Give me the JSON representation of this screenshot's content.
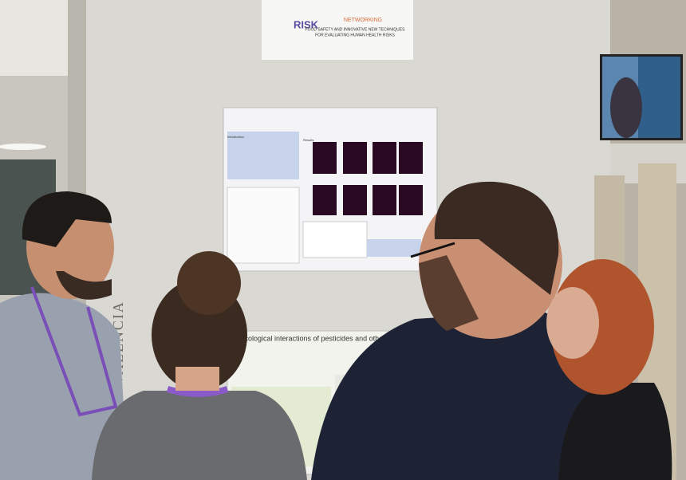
{
  "sign": {
    "logo": "RISK",
    "title": "NETWORKING",
    "subtitle_lines": [
      "FOOD SAFETY AND INNOVATIVE NEW TECHNIQUES",
      "FOR EVALUATING HUMAN HEALTH RISKS"
    ]
  },
  "poster_top": {
    "intro_heading": "Introduction",
    "results_heading": "Results"
  },
  "poster_bottom": {
    "title": "xicological interactions of pesticides and other xenobiotics"
  },
  "wall_text": "VALENCIA"
}
